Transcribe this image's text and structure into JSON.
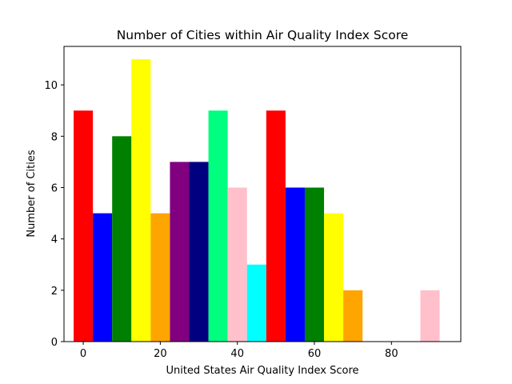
{
  "chart_data": {
    "type": "bar",
    "title": "Number of Cities within Air Quality Index Score",
    "xlabel": "United States Air Quality Index Score",
    "ylabel": "Number of Cities",
    "xlim": [
      -5,
      98
    ],
    "ylim": [
      0,
      11.5
    ],
    "xticks": [
      0,
      20,
      40,
      60,
      80
    ],
    "yticks": [
      0,
      2,
      4,
      6,
      8,
      10
    ],
    "bar_width": 5,
    "grid": false,
    "bars": [
      {
        "x": 0,
        "value": 9,
        "color": "#ff0000"
      },
      {
        "x": 5,
        "value": 5,
        "color": "#0000ff"
      },
      {
        "x": 10,
        "value": 8,
        "color": "#008000"
      },
      {
        "x": 15,
        "value": 11,
        "color": "#ffff00"
      },
      {
        "x": 20,
        "value": 5,
        "color": "#ffa500"
      },
      {
        "x": 25,
        "value": 7,
        "color": "#800080"
      },
      {
        "x": 30,
        "value": 7,
        "color": "#000080"
      },
      {
        "x": 35,
        "value": 9,
        "color": "#00ff7f"
      },
      {
        "x": 40,
        "value": 6,
        "color": "#ffc0cb"
      },
      {
        "x": 45,
        "value": 3,
        "color": "#00ffff"
      },
      {
        "x": 50,
        "value": 9,
        "color": "#ff0000"
      },
      {
        "x": 55,
        "value": 6,
        "color": "#0000ff"
      },
      {
        "x": 60,
        "value": 6,
        "color": "#008000"
      },
      {
        "x": 65,
        "value": 5,
        "color": "#ffff00"
      },
      {
        "x": 70,
        "value": 2,
        "color": "#ffa500"
      },
      {
        "x": 75,
        "value": 0,
        "color": "#800080"
      },
      {
        "x": 80,
        "value": 0,
        "color": "#000080"
      },
      {
        "x": 85,
        "value": 0,
        "color": "#00ff7f"
      },
      {
        "x": 90,
        "value": 2,
        "color": "#ffc0cb"
      }
    ]
  }
}
